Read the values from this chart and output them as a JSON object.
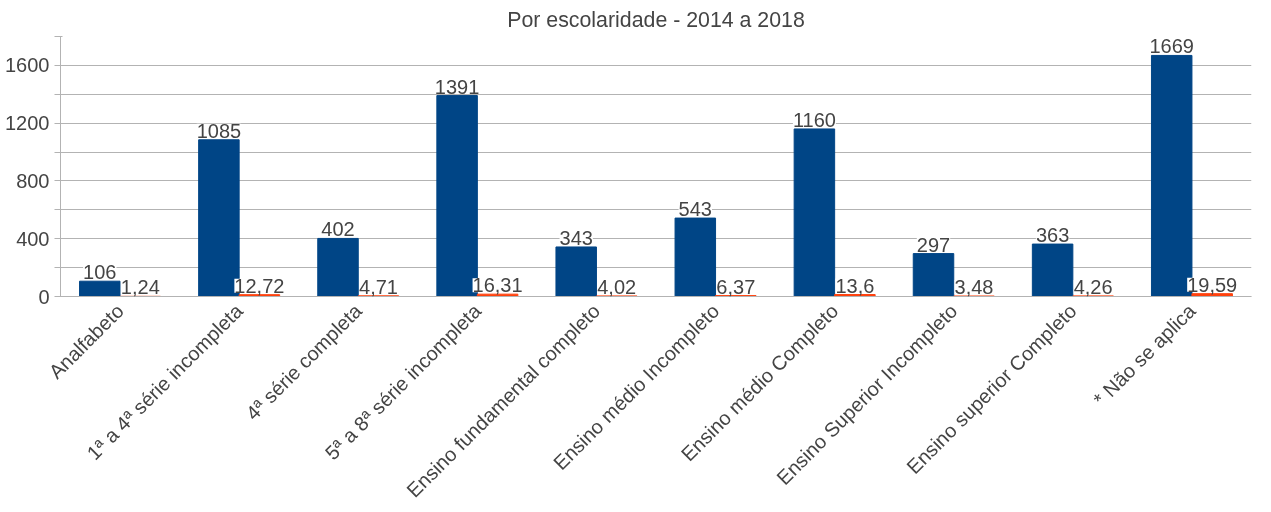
{
  "chart_data": {
    "type": "bar",
    "title": "Por escolaridade - 2014 a 2018",
    "categories": [
      "Analfabeto",
      "1ª a 4ª série incompleta",
      "4ª série completa",
      "5ª a 8ª série incompleta",
      "Ensino fundamental completo",
      "Ensino médio Incompleto",
      "Ensino médio Completo",
      "Ensino Superior Incompleto",
      "Ensino superior Completo",
      "* Não se aplica"
    ],
    "series": [
      {
        "color": "#004586",
        "values": [
          106,
          1085,
          402,
          1391,
          343,
          543,
          1160,
          297,
          363,
          1669
        ],
        "value_labels": [
          "106",
          "1085",
          "402",
          "1391",
          "343",
          "543",
          "1160",
          "297",
          "363",
          "1669"
        ]
      },
      {
        "color": "#ff420e",
        "values": [
          1.24,
          12.72,
          4.71,
          16.31,
          4.02,
          6.37,
          13.6,
          3.48,
          4.26,
          19.59
        ],
        "value_labels": [
          "1,24",
          "12,72",
          "4,71",
          "16,31",
          "4,02",
          "6,37",
          "13,6",
          "3,48",
          "4,26",
          "19,59"
        ]
      }
    ],
    "ylim": [
      0,
      1800
    ],
    "yticks": [
      0,
      {
        "value": 200,
        "label": null
      },
      400,
      {
        "value": 600,
        "label": null
      },
      800,
      {
        "value": 1000,
        "label": null
      },
      1200,
      {
        "value": 1400,
        "label": null
      },
      1600,
      {
        "value": 1800,
        "label": null
      }
    ],
    "grid": "y"
  }
}
